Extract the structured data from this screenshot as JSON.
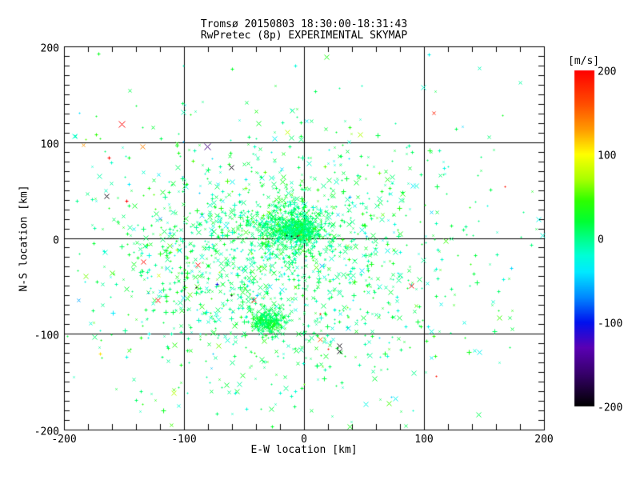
{
  "header": {
    "title_line1": "Tromsø 20150803 18:30:00-18:31:43",
    "title_line2": "RwPretec (8p) EXPERIMENTAL SKYMAP"
  },
  "plot": {
    "x_axis": {
      "label": "E-W location [km]",
      "min": -200,
      "max": 200,
      "ticks": [
        -200,
        -100,
        0,
        100,
        200
      ],
      "minor_step": 20
    },
    "y_axis": {
      "label": "N-S location [km]",
      "min": -200,
      "max": 200,
      "ticks": [
        200,
        100,
        0,
        -100,
        -200
      ],
      "minor_step": 10
    },
    "grid_values": [
      -100,
      0,
      100
    ],
    "grid_on": true,
    "frame_color": "#000000",
    "background_color": "#ffffff"
  },
  "colorbar": {
    "unit": "[m/s]",
    "min": -200,
    "max": 200,
    "ticks": [
      200,
      100,
      0,
      -100,
      -200
    ],
    "stops": [
      {
        "v": -200,
        "color": "#000000"
      },
      {
        "v": -160,
        "color": "#38006e"
      },
      {
        "v": -130,
        "color": "#5a00b4"
      },
      {
        "v": -100,
        "color": "#0011ee"
      },
      {
        "v": -70,
        "color": "#0088ff"
      },
      {
        "v": -40,
        "color": "#00eaff"
      },
      {
        "v": -20,
        "color": "#00ffd5"
      },
      {
        "v": 0,
        "color": "#00ff88"
      },
      {
        "v": 20,
        "color": "#00ff33"
      },
      {
        "v": 45,
        "color": "#2eff00"
      },
      {
        "v": 70,
        "color": "#a8ff00"
      },
      {
        "v": 100,
        "color": "#ffff00"
      },
      {
        "v": 130,
        "color": "#ff9900"
      },
      {
        "v": 160,
        "color": "#ff4d00"
      },
      {
        "v": 200,
        "color": "#ff0000"
      }
    ]
  },
  "chart_data": {
    "type": "scatter",
    "title": "Tromsø 20150803 18:30:00-18:31:43 / RwPretec (8p) EXPERIMENTAL SKYMAP",
    "xlabel": "E-W location [km]",
    "ylabel": "N-S location [km]",
    "xlim": [
      -200,
      200
    ],
    "ylim": [
      -200,
      200
    ],
    "value_unit": "m/s",
    "value_range": [
      -200,
      200
    ],
    "marker_shapes": [
      "x",
      "+"
    ],
    "legend_position": "right-colorbar",
    "seed": 20150803,
    "clusters": [
      {
        "name": "sparse-background",
        "n": 260,
        "cx": 0,
        "cy": -15,
        "sx": 135,
        "sy": 115,
        "v_mean": 8,
        "v_sd": 18
      },
      {
        "name": "main-cloud",
        "n": 1350,
        "cx": -28,
        "cy": -22,
        "sx": 72,
        "sy": 62,
        "v_mean": 10,
        "v_sd": 20
      },
      {
        "name": "central-core",
        "n": 500,
        "cx": -10,
        "cy": 10,
        "sx": 16,
        "sy": 13,
        "v_mean": 8,
        "v_sd": 15
      },
      {
        "name": "central-core-dense",
        "n": 260,
        "cx": -4,
        "cy": 9,
        "sx": 7,
        "sy": 6,
        "v_mean": 5,
        "v_sd": 12
      },
      {
        "name": "south-blob",
        "n": 210,
        "cx": -31,
        "cy": -86,
        "sx": 7.5,
        "sy": 7,
        "v_mean": 15,
        "v_sd": 12
      },
      {
        "name": "negative-sprinkle",
        "n": 140,
        "cx": -30,
        "cy": -15,
        "sx": 80,
        "sy": 70,
        "v_mean": -30,
        "v_sd": 18
      }
    ],
    "outliers": [
      {
        "x": -152,
        "y": 119,
        "v": 200,
        "shape": "x",
        "size": 4
      },
      {
        "x": -163,
        "y": 84,
        "v": 195,
        "shape": "+",
        "size": 2
      },
      {
        "x": -184,
        "y": 97,
        "v": 130,
        "shape": "x",
        "size": 2
      },
      {
        "x": -135,
        "y": 96,
        "v": 140,
        "shape": "x",
        "size": 3
      },
      {
        "x": -81,
        "y": 96,
        "v": -150,
        "shape": "x",
        "size": 4
      },
      {
        "x": -61,
        "y": 74,
        "v": -195,
        "shape": "x",
        "size": 3
      },
      {
        "x": -165,
        "y": 44,
        "v": -195,
        "shape": "x",
        "size": 3
      },
      {
        "x": -148,
        "y": 39,
        "v": 200,
        "shape": "+",
        "size": 2
      },
      {
        "x": -134,
        "y": -25,
        "v": 195,
        "shape": "x",
        "size": 3
      },
      {
        "x": -89,
        "y": -28,
        "v": 195,
        "shape": "x",
        "size": 3
      },
      {
        "x": -122,
        "y": -65,
        "v": 195,
        "shape": "x",
        "size": 3
      },
      {
        "x": -42,
        "y": -65,
        "v": 195,
        "shape": "x",
        "size": 3
      },
      {
        "x": -73,
        "y": -48,
        "v": -105,
        "shape": "+",
        "size": 2
      },
      {
        "x": -90,
        "y": -51,
        "v": -190,
        "shape": "+",
        "size": 1
      },
      {
        "x": -61,
        "y": -60,
        "v": -185,
        "shape": "+",
        "size": 1
      },
      {
        "x": -170,
        "y": -121,
        "v": 110,
        "shape": "+",
        "size": 2
      },
      {
        "x": -109,
        "y": -162,
        "v": 75,
        "shape": "x",
        "size": 3
      },
      {
        "x": 13,
        "y": -79,
        "v": 195,
        "shape": "+",
        "size": 1
      },
      {
        "x": 13,
        "y": -106,
        "v": 150,
        "shape": "x",
        "size": 3
      },
      {
        "x": 20,
        "y": -116,
        "v": 195,
        "shape": "+",
        "size": 1
      },
      {
        "x": 29,
        "y": -112,
        "v": -195,
        "shape": "x",
        "size": 3
      },
      {
        "x": 29,
        "y": -118,
        "v": -195,
        "shape": "x",
        "size": 3
      },
      {
        "x": 89,
        "y": -50,
        "v": 195,
        "shape": "x",
        "size": 3
      },
      {
        "x": 86,
        "y": -52,
        "v": 25,
        "shape": "+",
        "size": 1
      },
      {
        "x": 195,
        "y": 20,
        "v": -30,
        "shape": "x",
        "size": 3
      },
      {
        "x": -14,
        "y": 111,
        "v": 80,
        "shape": "x",
        "size": 3
      },
      {
        "x": -25,
        "y": 104,
        "v": -35,
        "shape": "x",
        "size": 3
      },
      {
        "x": 110,
        "y": -144,
        "v": 190,
        "shape": "+",
        "size": 1
      },
      {
        "x": 167,
        "y": 54,
        "v": 190,
        "shape": "+",
        "size": 1
      },
      {
        "x": 108,
        "y": 131,
        "v": 185,
        "shape": "x",
        "size": 2
      },
      {
        "x": -3,
        "y": 4,
        "v": 110,
        "shape": "+",
        "size": 1
      },
      {
        "x": 2,
        "y": -1,
        "v": 140,
        "shape": "+",
        "size": 1
      },
      {
        "x": -5,
        "y": 3,
        "v": 195,
        "shape": "+",
        "size": 1
      },
      {
        "x": -15,
        "y": 3,
        "v": -195,
        "shape": "+",
        "size": 1
      },
      {
        "x": -11,
        "y": 2,
        "v": -195,
        "shape": "+",
        "size": 1
      },
      {
        "x": -6,
        "y": 2,
        "v": -195,
        "shape": "+",
        "size": 1
      }
    ]
  }
}
